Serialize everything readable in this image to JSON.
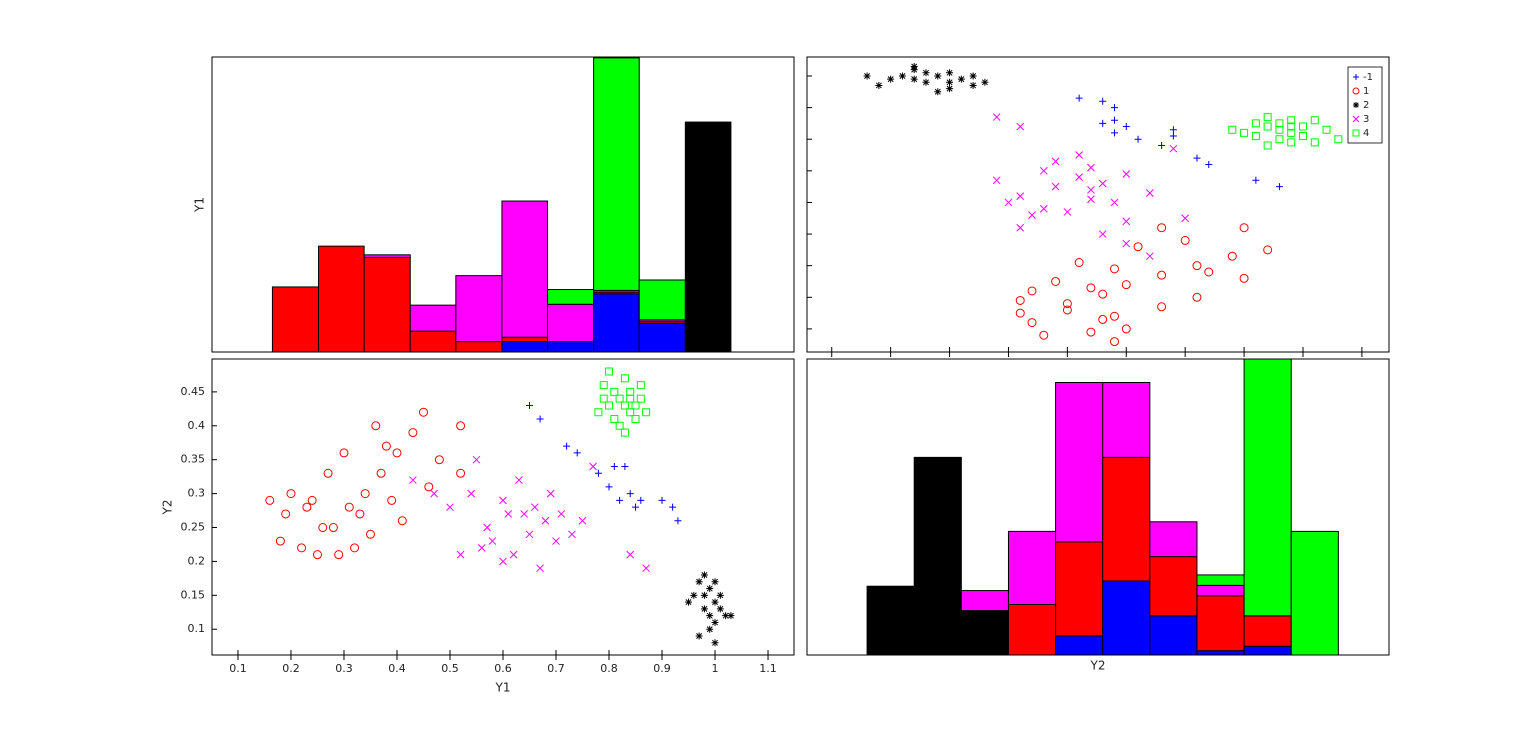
{
  "chart_data": [
    {
      "type": "histogram",
      "ylabel": "Y1",
      "edgecolor": "#000000",
      "bins": [
        0.165,
        0.252,
        0.338,
        0.425,
        0.511,
        0.598,
        0.684,
        0.771,
        0.857,
        0.944,
        1.03
      ],
      "xlim": [
        0.051,
        1.149
      ],
      "ylim": [
        0,
        34
      ],
      "series": [
        {
          "color": "#0000ff",
          "values": [
            0,
            0,
            0,
            0,
            0,
            1.2,
            1.2,
            6.7,
            3.3,
            0
          ]
        },
        {
          "color": "#ff0000",
          "values": [
            7.5,
            12.2,
            10.9,
            2.4,
            1.2,
            0.5,
            0,
            0.2,
            0.2,
            0
          ]
        },
        {
          "color": "#000000",
          "values": [
            0,
            0,
            0,
            0,
            0,
            0,
            0,
            0,
            0,
            26.5
          ]
        },
        {
          "color": "#ff00ff",
          "values": [
            0,
            0,
            0.3,
            3.0,
            7.6,
            15.7,
            4.3,
            0.2,
            0.2,
            0
          ]
        },
        {
          "color": "#00ff00",
          "values": [
            0,
            0,
            0,
            0,
            0,
            0,
            1.7,
            26.8,
            4.6,
            0
          ]
        }
      ]
    },
    {
      "type": "scatter",
      "xlim": [
        0.029,
        0.523
      ],
      "ylim": [
        0.127,
        1.06
      ],
      "xticks": [
        0.05,
        0.1,
        0.15,
        0.2,
        0.25,
        0.3,
        0.35,
        0.4,
        0.45,
        0.5
      ],
      "yticks": [
        0.2,
        0.3,
        0.4,
        0.5,
        0.6,
        0.7,
        0.8,
        0.9,
        1.0
      ],
      "tick_labels": false,
      "legend": "upper right",
      "series": [
        {
          "name": "-1",
          "color": "#0000ff",
          "marker": "+",
          "x": [
            0.43,
            0.41,
            0.37,
            0.36,
            0.33,
            0.31,
            0.34,
            0.29,
            0.3,
            0.28,
            0.29,
            0.29,
            0.28,
            0.26,
            0.34
          ],
          "values": [
            0.65,
            0.67,
            0.72,
            0.74,
            0.78,
            0.8,
            0.81,
            0.82,
            0.84,
            0.85,
            0.86,
            0.9,
            0.92,
            0.93,
            0.83
          ]
        },
        {
          "name": "1",
          "color": "#ff0000",
          "marker": "o",
          "x": [
            0.29,
            0.23,
            0.3,
            0.22,
            0.29,
            0.21,
            0.33,
            0.25,
            0.36,
            0.28,
            0.22,
            0.27,
            0.3,
            0.24,
            0.4,
            0.33,
            0.37,
            0.29,
            0.36,
            0.26,
            0.39,
            0.42,
            0.31,
            0.35,
            0.4,
            0.33,
            0.27,
            0.28,
            0.21,
            0.25
          ],
          "values": [
            0.16,
            0.18,
            0.2,
            0.22,
            0.24,
            0.25,
            0.27,
            0.28,
            0.3,
            0.31,
            0.32,
            0.33,
            0.34,
            0.35,
            0.36,
            0.37,
            0.38,
            0.39,
            0.4,
            0.41,
            0.43,
            0.45,
            0.46,
            0.48,
            0.52,
            0.52,
            0.19,
            0.23,
            0.29,
            0.26
          ]
        },
        {
          "name": "2",
          "color": "#000000",
          "marker": "*",
          "x": [
            0.15,
            0.17,
            0.13,
            0.18,
            0.12,
            0.16,
            0.14,
            0.11,
            0.15,
            0.13,
            0.12,
            0.09,
            0.1,
            0.08,
            0.12,
            0.15,
            0.17,
            0.14
          ],
          "values": [
            0.96,
            0.97,
            0.98,
            0.98,
            0.99,
            0.99,
            1.0,
            1.0,
            1.01,
            1.01,
            1.02,
            0.97,
            0.99,
            1.0,
            1.03,
            0.98,
            1.0,
            0.95
          ]
        },
        {
          "name": "3",
          "color": "#ff00ff",
          "marker": "x",
          "x": [
            0.32,
            0.3,
            0.28,
            0.21,
            0.3,
            0.35,
            0.25,
            0.23,
            0.29,
            0.27,
            0.21,
            0.32,
            0.24,
            0.28,
            0.19,
            0.26,
            0.23,
            0.27,
            0.24,
            0.26,
            0.34,
            0.2,
            0.22,
            0.27,
            0.21,
            0.19,
            0.3
          ],
          "values": [
            0.43,
            0.47,
            0.5,
            0.52,
            0.54,
            0.55,
            0.57,
            0.58,
            0.6,
            0.61,
            0.62,
            0.63,
            0.65,
            0.66,
            0.67,
            0.68,
            0.7,
            0.71,
            0.73,
            0.75,
            0.77,
            0.6,
            0.56,
            0.64,
            0.84,
            0.87,
            0.69
          ]
        },
        {
          "name": "4",
          "color": "#00ff00",
          "marker": "s",
          "x": [
            0.42,
            0.46,
            0.43,
            0.41,
            0.45,
            0.44,
            0.4,
            0.43,
            0.47,
            0.42,
            0.45,
            0.43,
            0.41,
            0.44,
            0.46,
            0.42,
            0.48,
            0.39,
            0.44,
            0.44
          ],
          "values": [
            0.78,
            0.79,
            0.8,
            0.81,
            0.81,
            0.82,
            0.82,
            0.83,
            0.83,
            0.84,
            0.84,
            0.85,
            0.85,
            0.86,
            0.86,
            0.87,
            0.8,
            0.83,
            0.79,
            0.84
          ]
        }
      ]
    },
    {
      "type": "scatter",
      "xlabel": "Y1",
      "ylabel": "Y2",
      "xlim": [
        0.051,
        1.149
      ],
      "ylim": [
        0.062,
        0.4985
      ],
      "xticks": [
        0.1,
        0.2,
        0.3,
        0.4,
        0.5,
        0.6,
        0.7,
        0.8,
        0.9,
        1,
        1.1
      ],
      "yticks": [
        0.1,
        0.15,
        0.2,
        0.25,
        0.3,
        0.35,
        0.4,
        0.45
      ],
      "tick_labels": true,
      "series": [
        {
          "color": "#0000ff",
          "marker": "+",
          "x": [
            0.65,
            0.67,
            0.72,
            0.74,
            0.78,
            0.8,
            0.81,
            0.82,
            0.84,
            0.85,
            0.86,
            0.9,
            0.92,
            0.93,
            0.83
          ],
          "values": [
            0.43,
            0.41,
            0.37,
            0.36,
            0.33,
            0.31,
            0.34,
            0.29,
            0.3,
            0.28,
            0.29,
            0.29,
            0.28,
            0.26,
            0.34
          ]
        },
        {
          "color": "#ff0000",
          "marker": "o",
          "x": [
            0.16,
            0.18,
            0.2,
            0.22,
            0.24,
            0.25,
            0.27,
            0.28,
            0.3,
            0.31,
            0.32,
            0.33,
            0.34,
            0.35,
            0.36,
            0.37,
            0.38,
            0.39,
            0.4,
            0.41,
            0.43,
            0.45,
            0.46,
            0.48,
            0.52,
            0.52,
            0.19,
            0.23,
            0.29,
            0.26
          ],
          "values": [
            0.29,
            0.23,
            0.3,
            0.22,
            0.29,
            0.21,
            0.33,
            0.25,
            0.36,
            0.28,
            0.22,
            0.27,
            0.3,
            0.24,
            0.4,
            0.33,
            0.37,
            0.29,
            0.36,
            0.26,
            0.39,
            0.42,
            0.31,
            0.35,
            0.4,
            0.33,
            0.27,
            0.28,
            0.21,
            0.25
          ]
        },
        {
          "color": "#000000",
          "marker": "*",
          "x": [
            0.96,
            0.97,
            0.98,
            0.98,
            0.99,
            0.99,
            1.0,
            1.0,
            1.01,
            1.01,
            1.02,
            0.97,
            0.99,
            1.0,
            1.03,
            0.98,
            1.0,
            0.95
          ],
          "values": [
            0.15,
            0.17,
            0.13,
            0.18,
            0.12,
            0.16,
            0.14,
            0.11,
            0.15,
            0.13,
            0.12,
            0.09,
            0.1,
            0.08,
            0.12,
            0.15,
            0.17,
            0.14
          ]
        },
        {
          "color": "#ff00ff",
          "marker": "x",
          "x": [
            0.43,
            0.47,
            0.5,
            0.52,
            0.54,
            0.55,
            0.57,
            0.58,
            0.6,
            0.61,
            0.62,
            0.63,
            0.65,
            0.66,
            0.67,
            0.68,
            0.7,
            0.71,
            0.73,
            0.75,
            0.77,
            0.6,
            0.56,
            0.64,
            0.84,
            0.87,
            0.69
          ],
          "values": [
            0.32,
            0.3,
            0.28,
            0.21,
            0.3,
            0.35,
            0.25,
            0.23,
            0.29,
            0.27,
            0.21,
            0.32,
            0.24,
            0.28,
            0.19,
            0.26,
            0.23,
            0.27,
            0.24,
            0.26,
            0.34,
            0.2,
            0.22,
            0.27,
            0.21,
            0.19,
            0.3
          ]
        },
        {
          "color": "#00ff00",
          "marker": "s",
          "x": [
            0.78,
            0.79,
            0.8,
            0.81,
            0.81,
            0.82,
            0.82,
            0.83,
            0.83,
            0.84,
            0.84,
            0.85,
            0.85,
            0.86,
            0.86,
            0.87,
            0.8,
            0.83,
            0.79,
            0.84
          ],
          "values": [
            0.42,
            0.46,
            0.43,
            0.41,
            0.45,
            0.44,
            0.4,
            0.43,
            0.47,
            0.42,
            0.45,
            0.43,
            0.41,
            0.44,
            0.46,
            0.42,
            0.48,
            0.39,
            0.44,
            0.44
          ]
        }
      ]
    },
    {
      "type": "histogram",
      "xlabel": "Y2",
      "edgecolor": "#000000",
      "bins": [
        0.08,
        0.12,
        0.16,
        0.2,
        0.24,
        0.28,
        0.32,
        0.36,
        0.4,
        0.44,
        0.48
      ],
      "xlim": [
        0.029,
        0.523
      ],
      "ylim": [
        0,
        34
      ],
      "series": [
        {
          "color": "#0000ff",
          "values": [
            0,
            0,
            0,
            0,
            2.2,
            8.5,
            4.5,
            0.5,
            1.0,
            0
          ]
        },
        {
          "color": "#ff0000",
          "values": [
            0,
            0,
            0,
            5.8,
            10.8,
            14.2,
            6.8,
            6.3,
            3.5,
            0
          ]
        },
        {
          "color": "#000000",
          "values": [
            7.9,
            22.7,
            5.1,
            0,
            0,
            0,
            0,
            0,
            0,
            0
          ]
        },
        {
          "color": "#ff00ff",
          "values": [
            0,
            0,
            2.3,
            8.4,
            18.3,
            8.6,
            4.0,
            1.2,
            0,
            0
          ]
        },
        {
          "color": "#00ff00",
          "values": [
            0,
            0,
            0,
            0,
            0,
            0,
            0,
            1.2,
            29.5,
            14.2
          ]
        }
      ]
    }
  ]
}
